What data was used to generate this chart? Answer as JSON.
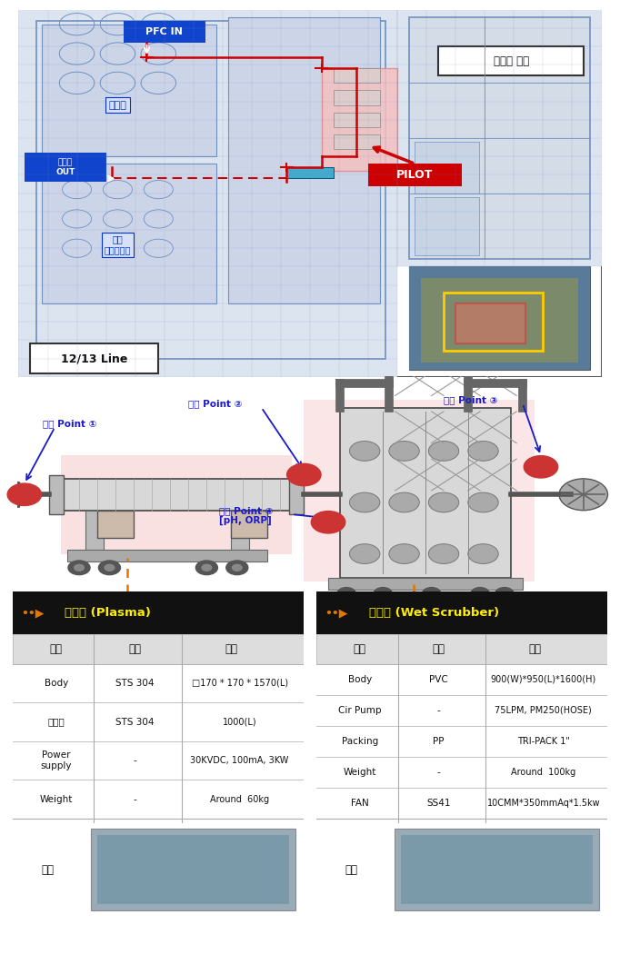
{
  "section1_label": "12/13 Line",
  "section1_annotation_office": "사무동 옥상",
  "section1_pfc_in": "PFC IN",
  "section1_pretreat": "전처리",
  "section1_pretreat_out": "전처리\nOUT",
  "section1_multi": "멀티\n정전유전체",
  "section1_pilot": "PILOT",
  "measure_point1": "측정 Point ①",
  "measure_point2": "측정 Point ②",
  "measure_point3": "측정 Point ③",
  "measure_point4_line1": "측정 Point ④",
  "measure_point4_line2": "[pH, ORP]",
  "plasma_title": "산화조 (Plasma)",
  "scrubber_title": "환원조 (Wet Scrubber)",
  "plasma_rows": [
    [
      "구분",
      "재질",
      "사양"
    ],
    [
      "Body",
      "STS 304",
      "□170 * 170 * 1570(L)"
    ],
    [
      "방전극",
      "STS 304",
      "1000(L)"
    ],
    [
      "Power\nsupply",
      "-",
      "30KVDC, 100mA, 3KW"
    ],
    [
      "Weight",
      "-",
      "Around  60kg"
    ]
  ],
  "scrubber_rows": [
    [
      "구분",
      "재질",
      "사양"
    ],
    [
      "Body",
      "PVC",
      "900(W)*950(L)*1600(H)"
    ],
    [
      "Cir Pump",
      "-",
      "75LPM, PM250(HOSE)"
    ],
    [
      "Packing",
      "PP",
      "TRI-PACK 1\""
    ],
    [
      "Weight",
      "-",
      "Around  100kg"
    ],
    [
      "FAN",
      "SS41",
      "10CMM*350mmAq*1.5kw"
    ]
  ],
  "plasma_photo_label": "사진",
  "scrubber_photo_label": "사진",
  "bg_color": "#ffffff",
  "black_header_color": "#111111",
  "orange_text_color": "#e07800",
  "blue_label_color": "#1a1acc",
  "red_color": "#cc0000",
  "table_header_bg": "#dddddd",
  "pink_highlight": "#f7cece",
  "orange_dashed_color": "#e07800",
  "blueprint_bg": "#dce4f0",
  "blueprint_line": "#7090c0"
}
